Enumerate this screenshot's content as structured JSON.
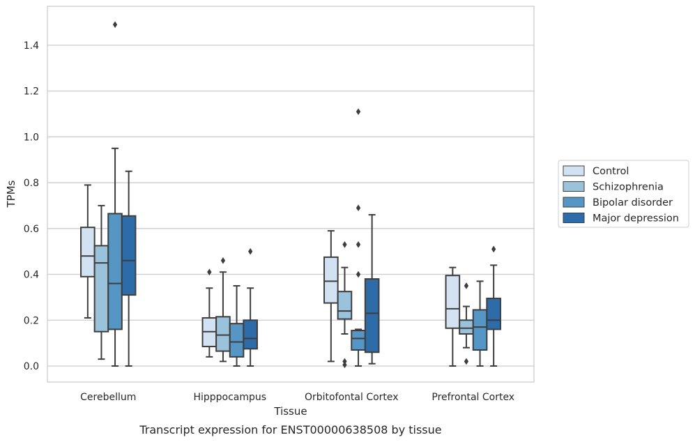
{
  "chart_data": {
    "type": "box",
    "xlabel": "Tissue",
    "ylabel": "TPMs",
    "caption": "Transcript expression for ENST00000638508 by tissue",
    "ylim": [
      -0.07,
      1.57
    ],
    "yticks": [
      "0.0",
      "0.2",
      "0.4",
      "0.6",
      "0.8",
      "1.0",
      "1.2",
      "1.4"
    ],
    "ytick_values": [
      0,
      0.2,
      0.4,
      0.6,
      0.8,
      1.0,
      1.2,
      1.4
    ],
    "grid": "horizontal",
    "legend_position": "right",
    "categories": [
      "Cerebellum",
      "Hipppocampus",
      "Orbitofontal Cortex",
      "Prefrontal Cortex"
    ],
    "series": [
      {
        "name": "Control",
        "color": "#d2e2f2",
        "boxes": [
          {
            "whislo": 0.21,
            "q1": 0.39,
            "med": 0.48,
            "q3": 0.605,
            "whishi": 0.79,
            "fliers": []
          },
          {
            "whislo": 0.04,
            "q1": 0.085,
            "med": 0.15,
            "q3": 0.21,
            "whishi": 0.34,
            "fliers": [
              0.41
            ]
          },
          {
            "whislo": 0.02,
            "q1": 0.275,
            "med": 0.37,
            "q3": 0.475,
            "whishi": 0.59,
            "fliers": []
          },
          {
            "whislo": 0.0,
            "q1": 0.165,
            "med": 0.25,
            "q3": 0.395,
            "whishi": 0.43,
            "fliers": []
          }
        ]
      },
      {
        "name": "Schizophrenia",
        "color": "#9ac2db",
        "boxes": [
          {
            "whislo": 0.03,
            "q1": 0.15,
            "med": 0.45,
            "q3": 0.525,
            "whishi": 0.7,
            "fliers": []
          },
          {
            "whislo": 0.02,
            "q1": 0.065,
            "med": 0.135,
            "q3": 0.215,
            "whishi": 0.41,
            "fliers": [
              0.46
            ]
          },
          {
            "whislo": 0.14,
            "q1": 0.205,
            "med": 0.24,
            "q3": 0.325,
            "whishi": 0.43,
            "fliers": [
              0.53,
              0.02,
              0.005
            ]
          },
          {
            "whislo": 0.08,
            "q1": 0.14,
            "med": 0.165,
            "q3": 0.2,
            "whishi": 0.26,
            "fliers": [
              0.35,
              0.02
            ]
          }
        ]
      },
      {
        "name": "Bipolar disorder",
        "color": "#5596c4",
        "boxes": [
          {
            "whislo": 0.0,
            "q1": 0.16,
            "med": 0.36,
            "q3": 0.665,
            "whishi": 0.95,
            "fliers": [
              1.49
            ]
          },
          {
            "whislo": 0.0,
            "q1": 0.04,
            "med": 0.105,
            "q3": 0.185,
            "whishi": 0.35,
            "fliers": []
          },
          {
            "whislo": 0.0,
            "q1": 0.07,
            "med": 0.12,
            "q3": 0.155,
            "whishi": 0.16,
            "fliers": [
              1.11,
              0.69,
              0.53,
              0.4
            ]
          },
          {
            "whislo": 0.0,
            "q1": 0.07,
            "med": 0.17,
            "q3": 0.245,
            "whishi": 0.37,
            "fliers": []
          }
        ]
      },
      {
        "name": "Major depression",
        "color": "#2d6ca8",
        "boxes": [
          {
            "whislo": 0.0,
            "q1": 0.31,
            "med": 0.46,
            "q3": 0.655,
            "whishi": 0.85,
            "fliers": []
          },
          {
            "whislo": 0.0,
            "q1": 0.075,
            "med": 0.12,
            "q3": 0.2,
            "whishi": 0.34,
            "fliers": [
              0.5
            ]
          },
          {
            "whislo": 0.01,
            "q1": 0.06,
            "med": 0.23,
            "q3": 0.38,
            "whishi": 0.66,
            "fliers": []
          },
          {
            "whislo": 0.0,
            "q1": 0.16,
            "med": 0.2,
            "q3": 0.295,
            "whishi": 0.44,
            "fliers": [
              0.51
            ]
          }
        ]
      }
    ]
  }
}
